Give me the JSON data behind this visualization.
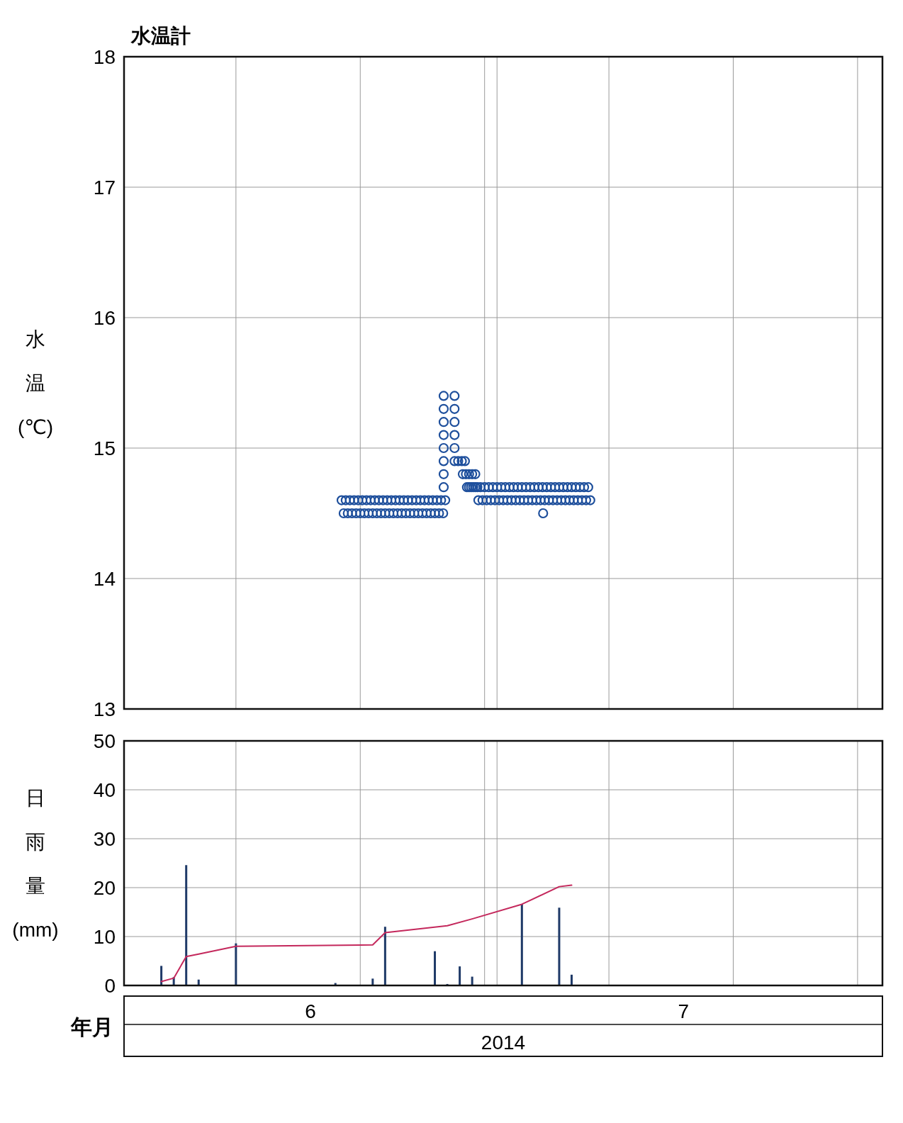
{
  "chart_data": [
    {
      "type": "scatter",
      "title": "水温計",
      "ylabel": "水温(℃)",
      "xlim": [
        "2014-06-01",
        "2014-08-01"
      ],
      "xticks": [
        {
          "value": "2014-06-10",
          "label": null
        },
        {
          "value": "2014-06-20",
          "label": null
        },
        {
          "value": "2014-06-30",
          "label": null
        },
        {
          "value": "2014-07-01",
          "label": null
        },
        {
          "value": "2014-07-10",
          "label": null
        },
        {
          "value": "2014-07-20",
          "label": null
        },
        {
          "value": "2014-07-30",
          "label": null
        }
      ],
      "ylim": [
        13,
        18
      ],
      "yticks": [
        13,
        14,
        15,
        16,
        17,
        18
      ],
      "grid": true,
      "tick_labels": "y",
      "marker": "circle",
      "series": [
        {
          "color": "#1e4f9c",
          "x": [
            "2014-06-18T12:00",
            "2014-06-18T16:00",
            "2014-06-18T20:00",
            "2014-06-19T00:00",
            "2014-06-19T04:00",
            "2014-06-19T08:00",
            "2014-06-19T12:00",
            "2014-06-19T16:00",
            "2014-06-19T20:00",
            "2014-06-20T00:00",
            "2014-06-20T04:00",
            "2014-06-20T08:00",
            "2014-06-20T12:00",
            "2014-06-20T16:00",
            "2014-06-20T20:00",
            "2014-06-21T00:00",
            "2014-06-21T04:00",
            "2014-06-21T08:00",
            "2014-06-21T12:00",
            "2014-06-21T16:00",
            "2014-06-21T20:00",
            "2014-06-22T00:00",
            "2014-06-22T04:00",
            "2014-06-22T08:00",
            "2014-06-22T12:00",
            "2014-06-22T16:00",
            "2014-06-22T20:00",
            "2014-06-23T00:00",
            "2014-06-23T04:00",
            "2014-06-23T08:00",
            "2014-06-23T12:00",
            "2014-06-23T16:00",
            "2014-06-23T20:00",
            "2014-06-24T00:00",
            "2014-06-24T04:00",
            "2014-06-24T08:00",
            "2014-06-24T12:00",
            "2014-06-24T16:00",
            "2014-06-24T20:00",
            "2014-06-25T00:00",
            "2014-06-25T04:00",
            "2014-06-25T08:00",
            "2014-06-25T12:00",
            "2014-06-25T16:00",
            "2014-06-25T20:00",
            "2014-06-26T00:00",
            "2014-06-26T04:00",
            "2014-06-26T08:00",
            "2014-06-26T12:00",
            "2014-06-26T16:00",
            "2014-06-26T20:00",
            "2014-06-26T17:00",
            "2014-06-26T17:00",
            "2014-06-26T17:00",
            "2014-06-26T17:00",
            "2014-06-26T17:00",
            "2014-06-26T17:00",
            "2014-06-26T17:00",
            "2014-06-26T17:00",
            "2014-06-27T14:00",
            "2014-06-27T14:00",
            "2014-06-27T14:00",
            "2014-06-27T14:00",
            "2014-06-27T14:00",
            "2014-06-27T14:00",
            "2014-06-27T21:00",
            "2014-06-28T04:00",
            "2014-06-28T10:00",
            "2014-06-28T06:00",
            "2014-06-28T12:00",
            "2014-06-28T18:00",
            "2014-06-29T00:00",
            "2014-06-29T06:00",
            "2014-06-28T14:00",
            "2014-06-28T18:00",
            "2014-06-28T22:00",
            "2014-06-29T02:00",
            "2014-06-29T06:00",
            "2014-06-29T10:00",
            "2014-06-29T12:00",
            "2014-06-29T16:00",
            "2014-06-29T20:00",
            "2014-06-30T00:00",
            "2014-06-30T04:00",
            "2014-06-30T08:00",
            "2014-06-30T12:00",
            "2014-06-30T16:00",
            "2014-06-30T20:00",
            "2014-07-01T00:00",
            "2014-07-01T04:00",
            "2014-07-01T08:00",
            "2014-07-01T12:00",
            "2014-07-01T16:00",
            "2014-07-01T20:00",
            "2014-07-02T00:00",
            "2014-07-02T04:00",
            "2014-07-02T08:00",
            "2014-07-02T12:00",
            "2014-07-02T16:00",
            "2014-07-02T20:00",
            "2014-07-03T00:00",
            "2014-07-03T04:00",
            "2014-07-03T08:00",
            "2014-07-03T12:00",
            "2014-07-03T16:00",
            "2014-07-03T20:00",
            "2014-07-04T00:00",
            "2014-07-04T04:00",
            "2014-07-04T08:00",
            "2014-07-04T12:00",
            "2014-07-04T16:00",
            "2014-07-04T20:00",
            "2014-07-05T00:00",
            "2014-07-05T04:00",
            "2014-07-05T08:00",
            "2014-07-05T12:00",
            "2014-07-05T16:00",
            "2014-07-05T20:00",
            "2014-07-06T00:00",
            "2014-07-06T04:00",
            "2014-07-06T08:00",
            "2014-07-06T12:00",
            "2014-07-06T16:00",
            "2014-07-06T20:00",
            "2014-07-07T00:00",
            "2014-07-07T04:00",
            "2014-07-07T08:00",
            "2014-07-07T12:00",
            "2014-07-07T16:00",
            "2014-07-07T20:00",
            "2014-07-08T00:00",
            "2014-07-08T04:00",
            "2014-07-08T08:00",
            "2014-07-08T12:00",
            "2014-07-04T17:00"
          ],
          "values": [
            14.6,
            14.5,
            14.6,
            14.5,
            14.6,
            14.5,
            14.6,
            14.5,
            14.6,
            14.5,
            14.6,
            14.5,
            14.6,
            14.5,
            14.6,
            14.5,
            14.6,
            14.5,
            14.6,
            14.5,
            14.6,
            14.5,
            14.6,
            14.5,
            14.6,
            14.5,
            14.6,
            14.5,
            14.6,
            14.5,
            14.6,
            14.5,
            14.6,
            14.5,
            14.6,
            14.5,
            14.6,
            14.5,
            14.6,
            14.5,
            14.6,
            14.5,
            14.6,
            14.5,
            14.6,
            14.5,
            14.6,
            14.5,
            14.6,
            14.5,
            14.6,
            14.7,
            14.8,
            14.9,
            15.0,
            15.1,
            15.2,
            15.3,
            15.4,
            15.4,
            15.3,
            15.2,
            15.1,
            15.0,
            14.9,
            14.9,
            14.9,
            14.9,
            14.8,
            14.8,
            14.8,
            14.8,
            14.8,
            14.7,
            14.7,
            14.7,
            14.7,
            14.7,
            14.7,
            14.6,
            14.7,
            14.6,
            14.7,
            14.6,
            14.7,
            14.6,
            14.7,
            14.6,
            14.7,
            14.6,
            14.7,
            14.6,
            14.7,
            14.6,
            14.7,
            14.6,
            14.7,
            14.6,
            14.7,
            14.6,
            14.7,
            14.6,
            14.7,
            14.6,
            14.7,
            14.6,
            14.7,
            14.6,
            14.7,
            14.6,
            14.7,
            14.6,
            14.7,
            14.6,
            14.7,
            14.6,
            14.7,
            14.6,
            14.7,
            14.6,
            14.7,
            14.6,
            14.7,
            14.6,
            14.7,
            14.6,
            14.7,
            14.6,
            14.7,
            14.6,
            14.7,
            14.6,
            14.7,
            14.6,
            14.5
          ]
        }
      ]
    },
    {
      "type": "bar",
      "ylabel": "日雨量(mm)",
      "xlabel": "年月",
      "xlim": [
        "2014-06-01",
        "2014-08-01"
      ],
      "xticks": [
        {
          "value": "2014-06-10",
          "label": null
        },
        {
          "value": "2014-06-20",
          "label": null
        },
        {
          "value": "2014-06-30",
          "label": null
        },
        {
          "value": "2014-07-01",
          "label": null
        },
        {
          "value": "2014-07-10",
          "label": null
        },
        {
          "value": "2014-07-20",
          "label": null
        },
        {
          "value": "2014-07-30",
          "label": null
        },
        {
          "value": "2014-06-16",
          "label": "6"
        },
        {
          "value": "2014-07-16",
          "label": "7"
        }
      ],
      "ylim": [
        0,
        50
      ],
      "yticks": [
        0,
        10,
        20,
        30,
        40,
        50
      ],
      "grid": true,
      "annotations": [
        "2014"
      ],
      "series": [
        {
          "color": "#1f3a68",
          "x": [
            "2014-06-04",
            "2014-06-05",
            "2014-06-06",
            "2014-06-07",
            "2014-06-10",
            "2014-06-18",
            "2014-06-21",
            "2014-06-22",
            "2014-06-26",
            "2014-06-27",
            "2014-06-28",
            "2014-06-29",
            "2014-07-03",
            "2014-07-06",
            "2014-07-07"
          ],
          "values": [
            4.0,
            1.7,
            24.6,
            1.2,
            8.6,
            0.5,
            1.4,
            12.0,
            7.0,
            0.3,
            3.9,
            1.8,
            16.6,
            15.9,
            2.2
          ]
        },
        {
          "type": "line",
          "color": "#c4285c",
          "x": [
            "2014-06-04",
            "2014-06-05",
            "2014-06-06",
            "2014-06-07",
            "2014-06-10",
            "2014-06-21",
            "2014-06-22",
            "2014-06-27",
            "2014-06-29",
            "2014-07-03",
            "2014-07-06",
            "2014-07-07"
          ],
          "values": [
            0.8,
            1.5,
            5.9,
            6.4,
            8.0,
            8.3,
            10.8,
            12.2,
            13.6,
            16.6,
            20.2,
            20.5
          ]
        }
      ]
    }
  ]
}
